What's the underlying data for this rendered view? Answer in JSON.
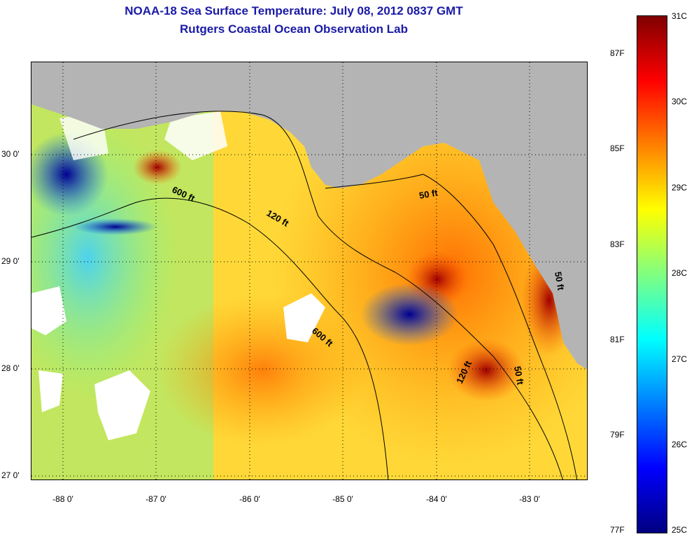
{
  "title_line1": "NOAA-18 Sea Surface Temperature:  July 08, 2012 0837 GMT",
  "title_line2": "Rutgers Coastal Ocean Observation Lab",
  "lat_labels": [
    "30 0'",
    "29 0'",
    "28 0'",
    "27 0'"
  ],
  "lon_labels": [
    "-88 0'",
    "-87 0'",
    "-86 0'",
    "-85 0'",
    "-84 0'",
    "-83 0'"
  ],
  "contour_labels": [
    "600 ft",
    "120 ft",
    "50 ft",
    "600 ft",
    "120 ft",
    "50 ft",
    "50 ft"
  ],
  "colorbar": {
    "celsius_labels": [
      "31C",
      "30C",
      "29C",
      "28C",
      "27C",
      "26C",
      "25C"
    ],
    "fahrenheit_labels": [
      "87F",
      "85F",
      "83F",
      "81F",
      "79F",
      "77F"
    ],
    "colors": [
      "#800000",
      "#ff0000",
      "#ff8000",
      "#ffff00",
      "#80ff80",
      "#00ffff",
      "#0080ff",
      "#0000ff",
      "#000080"
    ]
  },
  "colors": {
    "land": "#b4b4b4",
    "no_data": "#ffffff",
    "title": "#1a1aa6"
  }
}
